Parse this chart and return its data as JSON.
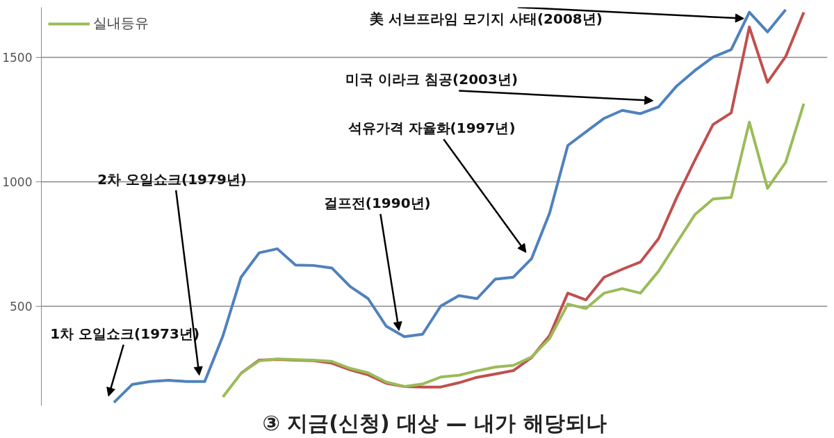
{
  "chart_data": {
    "type": "line",
    "categories": [
      null,
      null,
      null,
      null,
      null,
      null,
      null,
      null,
      null,
      null,
      null,
      null,
      null,
      null,
      null,
      null,
      null,
      null,
      null,
      null,
      null,
      null,
      null,
      null,
      null,
      null,
      null,
      null,
      null,
      null,
      null,
      null,
      null,
      null,
      null,
      null,
      null,
      null,
      null
    ],
    "series": [
      {
        "color": "#4f81bd",
        "values": [
          113,
          185,
          197,
          202,
          197,
          197,
          380,
          616,
          714,
          730,
          665,
          663,
          653,
          579,
          530,
          419,
          377,
          387,
          500,
          542,
          530,
          608,
          616,
          690,
          874,
          1145,
          1200,
          1254,
          1286,
          1273,
          1300,
          1384,
          1446,
          1500,
          1530,
          1680,
          1601,
          1690,
          null
        ]
      },
      {
        "color": "#c0504d",
        "values": [
          null,
          null,
          null,
          null,
          null,
          null,
          null,
          230,
          283,
          286,
          283,
          281,
          271,
          244,
          224,
          190,
          177,
          175,
          175,
          192,
          214,
          227,
          241,
          293,
          382,
          552,
          525,
          616,
          648,
          677,
          771,
          936,
          1086,
          1229,
          1276,
          1621,
          1399,
          1502,
          1680
        ]
      },
      {
        "name": "실내등유",
        "color": "#9bbb59",
        "values": [
          null,
          null,
          null,
          null,
          null,
          null,
          135,
          230,
          280,
          288,
          285,
          283,
          278,
          250,
          232,
          195,
          177,
          187,
          215,
          222,
          240,
          255,
          262,
          295,
          370,
          508,
          490,
          552,
          570,
          552,
          640,
          754,
          867,
          930,
          936,
          1239,
          973,
          1077,
          1313
        ]
      }
    ],
    "ylim": [
      100,
      1700
    ],
    "yticks": [
      500,
      1000,
      1500
    ],
    "grid": "y",
    "legend": "top left",
    "annotations": [
      "1차 오일쇼크(1973년)",
      "2차 오일쇼크(1979년)",
      "걸프전(1990년)",
      "석유가격 자율화(1997년)",
      "미국 이라크 침공(2003년)",
      "美 서브프라임 모기지 사태(2008년)",
      "③ 지금(신청) 대상 — 내가 해당되나"
    ]
  }
}
